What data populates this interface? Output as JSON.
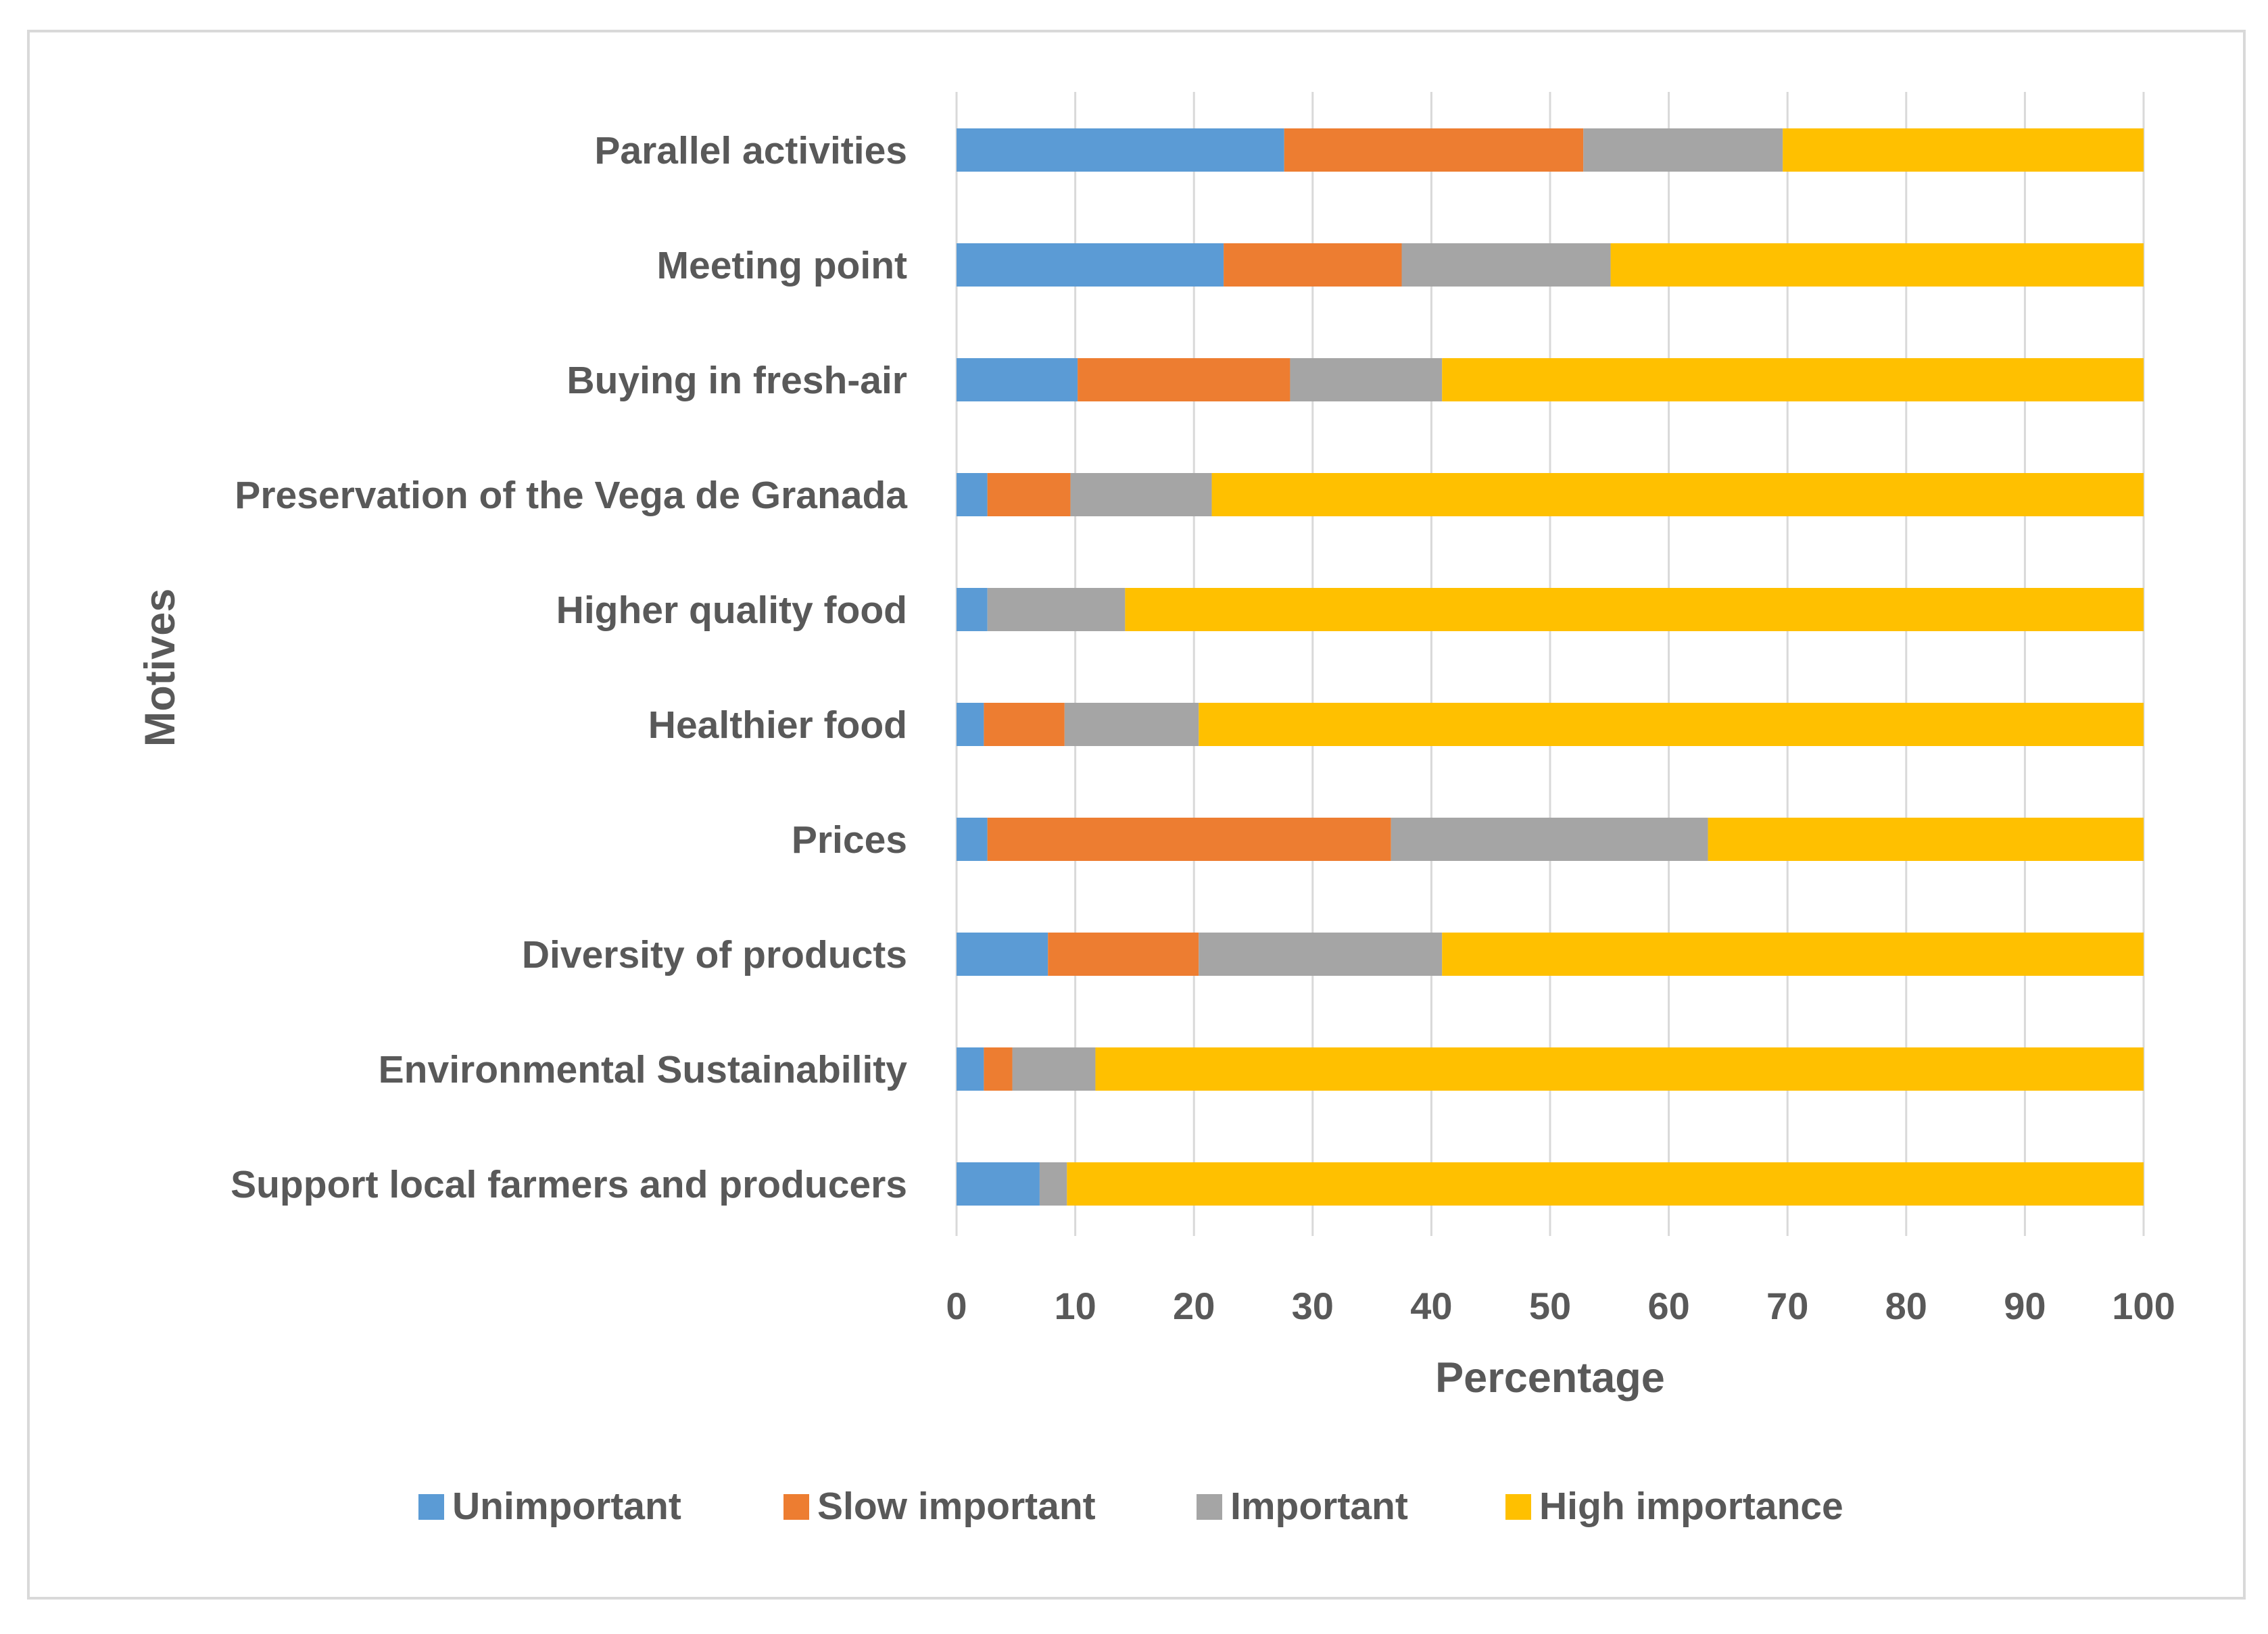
{
  "chart_data": {
    "type": "bar",
    "orientation": "horizontal",
    "stacked": true,
    "title": "",
    "xlabel": "Percentage",
    "ylabel": "Motives",
    "xlim": [
      0,
      100
    ],
    "xticks": [
      "0",
      "10",
      "20",
      "30",
      "40",
      "50",
      "60",
      "70",
      "80",
      "90",
      "100"
    ],
    "grid": "vertical",
    "legend_position": "bottom",
    "categories": [
      "Parallel activities",
      "Meeting point",
      "Buying in fresh-air",
      "Preservation of the Vega de Granada",
      "Higher quality food",
      "Healthier food",
      "Prices",
      "Diversity of products",
      "Environmental Sustainability",
      "Support local farmers and producers"
    ],
    "series": [
      {
        "name": "Unimportant",
        "color": "#5b9bd5",
        "values": [
          27.6,
          22.5,
          10.2,
          2.6,
          2.6,
          2.3,
          2.6,
          7.7,
          2.3,
          7.0
        ]
      },
      {
        "name": "Slow important",
        "color": "#ed7d31",
        "values": [
          25.2,
          15.0,
          17.9,
          7.0,
          0.0,
          6.8,
          34.0,
          12.7,
          2.4,
          0.0
        ]
      },
      {
        "name": "Important",
        "color": "#a5a5a5",
        "values": [
          16.8,
          17.6,
          12.8,
          11.9,
          11.6,
          11.3,
          26.7,
          20.5,
          7.0,
          2.3
        ]
      },
      {
        "name": "High importance",
        "color": "#ffc000",
        "values": [
          30.4,
          44.9,
          59.1,
          78.5,
          85.8,
          79.6,
          36.7,
          59.1,
          88.3,
          90.7
        ]
      }
    ]
  }
}
